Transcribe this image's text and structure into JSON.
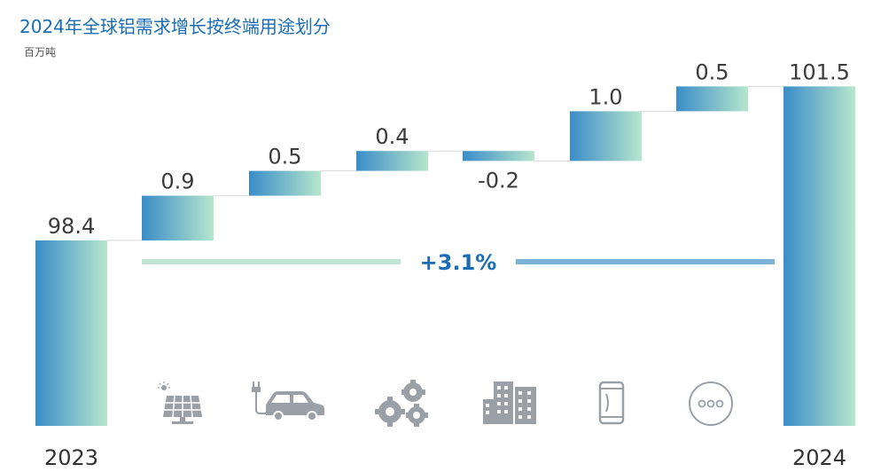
{
  "title": "2024年全球铝需求增长按终端用途划分",
  "unit": "百万吨",
  "growth_label": "+3.1%",
  "colors": {
    "bar_start": "#3a8dc8",
    "bar_end": "#b6e6cc",
    "growth_line_left": "#bfe3d5",
    "growth_line_right": "#7db2d8",
    "text": "#3b3b3b",
    "accent": "#1a6db4"
  },
  "icons": [
    "solar-panel-icon",
    "electric-car-icon",
    "gears-icon",
    "buildings-icon",
    "beverage-can-icon",
    "more-icon"
  ],
  "chart_data": {
    "type": "waterfall",
    "title": "2024年全球铝需求增长按终端用途划分",
    "ylabel": "百万吨",
    "bars": [
      {
        "label": "2023",
        "value": 98.4,
        "kind": "total"
      },
      {
        "label": "",
        "value": 0.9,
        "kind": "delta"
      },
      {
        "label": "",
        "value": 0.5,
        "kind": "delta"
      },
      {
        "label": "",
        "value": 0.4,
        "kind": "delta"
      },
      {
        "label": "",
        "value": -0.2,
        "kind": "delta"
      },
      {
        "label": "",
        "value": 1.0,
        "kind": "delta"
      },
      {
        "label": "",
        "value": 0.5,
        "kind": "delta"
      },
      {
        "label": "2024",
        "value": 101.5,
        "kind": "total"
      }
    ],
    "value_labels": [
      "98.4",
      "0.9",
      "0.5",
      "0.4",
      "-0.2",
      "1.0",
      "0.5",
      "101.5"
    ],
    "growth": "+3.1%"
  }
}
